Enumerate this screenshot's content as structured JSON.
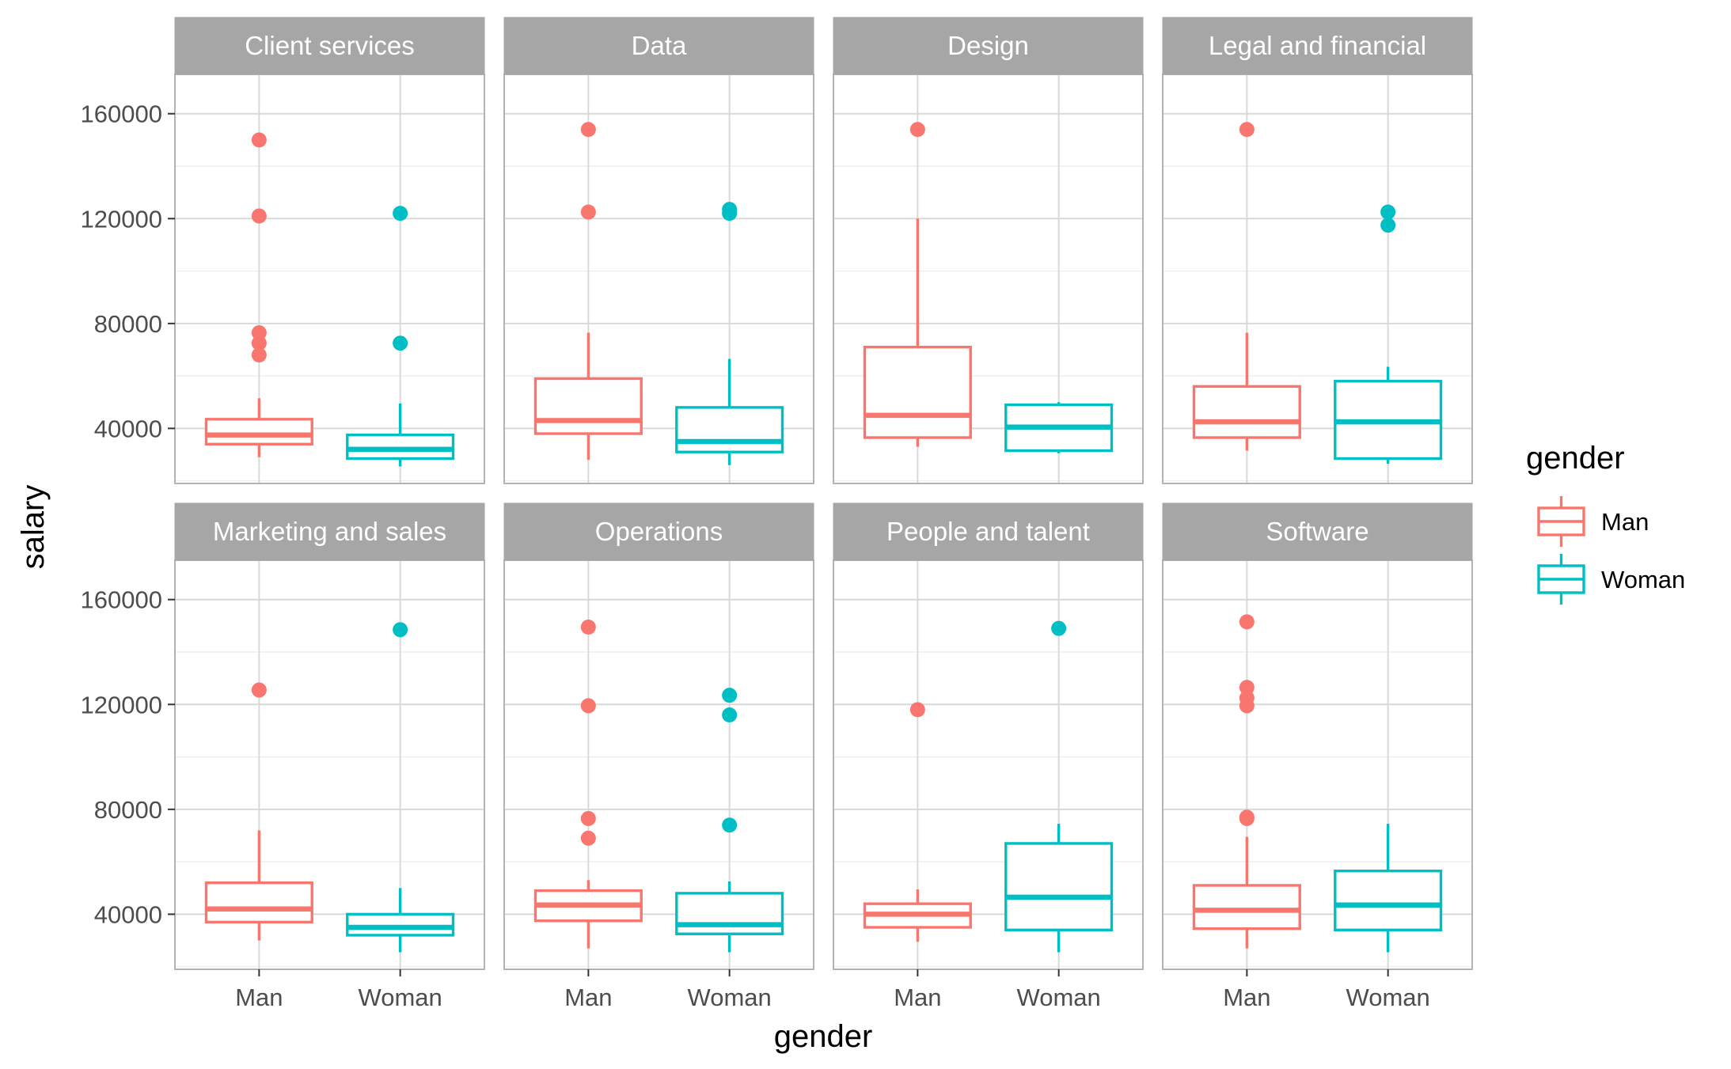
{
  "chart_data": {
    "type": "boxplot",
    "facet_by": "job category",
    "xlabel": "gender",
    "ylabel": "salary",
    "categories": [
      "Man",
      "Woman"
    ],
    "ylim": [
      19000,
      175000
    ],
    "yticks": [
      40000,
      80000,
      120000,
      160000
    ],
    "grid": true,
    "legend": {
      "title": "gender",
      "placement": "right",
      "entries": [
        {
          "label": "Man",
          "color": "#F8766D"
        },
        {
          "label": "Woman",
          "color": "#00BFC4"
        }
      ]
    },
    "colors": {
      "Man": "#F8766D",
      "Woman": "#00BFC4",
      "strip": "#A6A6A6",
      "grid_major": "#D9D9D9",
      "grid_minor": "#EBEBEB",
      "border": "#B3B3B3"
    },
    "panels": [
      {
        "title": "Client services",
        "boxes": [
          {
            "group": "Man",
            "min": 29000,
            "q1": 34000,
            "median": 37500,
            "q3": 43500,
            "max": 51500,
            "outliers": [
              150000,
              121000,
              76500,
              72500,
              68000
            ]
          },
          {
            "group": "Woman",
            "min": 25500,
            "q1": 28500,
            "median": 32000,
            "q3": 37500,
            "max": 49500,
            "outliers": [
              122000,
              72500
            ]
          }
        ]
      },
      {
        "title": "Data",
        "boxes": [
          {
            "group": "Man",
            "min": 28000,
            "q1": 38000,
            "median": 43000,
            "q3": 59000,
            "max": 76500,
            "outliers": [
              154000,
              122500
            ]
          },
          {
            "group": "Woman",
            "min": 26000,
            "q1": 31000,
            "median": 35000,
            "q3": 48000,
            "max": 66500,
            "outliers": [
              123500,
              122000
            ]
          }
        ]
      },
      {
        "title": "Design",
        "boxes": [
          {
            "group": "Man",
            "min": 33000,
            "q1": 36500,
            "median": 45000,
            "q3": 71000,
            "max": 120000,
            "outliers": [
              154000
            ]
          },
          {
            "group": "Woman",
            "min": 30500,
            "q1": 31500,
            "median": 40500,
            "q3": 49000,
            "max": 50000,
            "outliers": []
          }
        ]
      },
      {
        "title": "Legal and financial",
        "boxes": [
          {
            "group": "Man",
            "min": 31500,
            "q1": 36500,
            "median": 42500,
            "q3": 56000,
            "max": 76500,
            "outliers": [
              154000
            ]
          },
          {
            "group": "Woman",
            "min": 26500,
            "q1": 28500,
            "median": 42500,
            "q3": 58000,
            "max": 63500,
            "outliers": [
              122500,
              117500
            ]
          }
        ]
      },
      {
        "title": "Marketing and sales",
        "boxes": [
          {
            "group": "Man",
            "min": 30000,
            "q1": 37000,
            "median": 42000,
            "q3": 52000,
            "max": 72000,
            "outliers": [
              125500
            ]
          },
          {
            "group": "Woman",
            "min": 25500,
            "q1": 32000,
            "median": 35000,
            "q3": 40000,
            "max": 50000,
            "outliers": [
              148500
            ]
          }
        ]
      },
      {
        "title": "Operations",
        "boxes": [
          {
            "group": "Man",
            "min": 27000,
            "q1": 37500,
            "median": 43500,
            "q3": 49000,
            "max": 53000,
            "outliers": [
              149500,
              119500,
              76500,
              69000
            ]
          },
          {
            "group": "Woman",
            "min": 25500,
            "q1": 32500,
            "median": 36000,
            "q3": 48000,
            "max": 52500,
            "outliers": [
              123500,
              116000,
              74000
            ]
          }
        ]
      },
      {
        "title": "People and talent",
        "boxes": [
          {
            "group": "Man",
            "min": 29500,
            "q1": 35000,
            "median": 40000,
            "q3": 44000,
            "max": 49500,
            "outliers": [
              118000
            ]
          },
          {
            "group": "Woman",
            "min": 25500,
            "q1": 34000,
            "median": 46500,
            "q3": 67000,
            "max": 74500,
            "outliers": [
              149000
            ]
          }
        ]
      },
      {
        "title": "Software",
        "boxes": [
          {
            "group": "Man",
            "min": 27000,
            "q1": 34500,
            "median": 41500,
            "q3": 51000,
            "max": 69500,
            "outliers": [
              151500,
              126500,
              122500,
              119500,
              77000,
              76500
            ]
          },
          {
            "group": "Woman",
            "min": 25500,
            "q1": 34000,
            "median": 43500,
            "q3": 56500,
            "max": 74500,
            "outliers": []
          }
        ]
      }
    ]
  }
}
